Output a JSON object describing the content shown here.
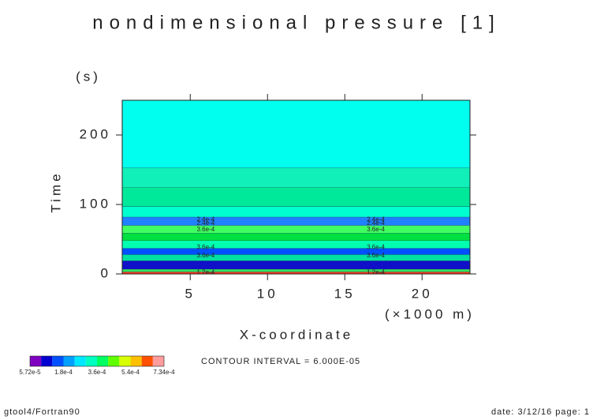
{
  "chart_data": {
    "type": "bands",
    "title": "nondimensional pressure [1]",
    "y_unit": "(s)",
    "ylabel": "Time",
    "xlabel": "X-coordinate",
    "x_unit": "(×1000 m)",
    "xlim": [
      0.6,
      23.1
    ],
    "ylim": [
      0,
      250
    ],
    "xticks": [
      5,
      10,
      15,
      20
    ],
    "yticks": [
      0,
      100,
      200
    ],
    "bands": [
      {
        "y0": 0,
        "y1": 3,
        "color": "#ff3a1e"
      },
      {
        "y0": 3,
        "y1": 7,
        "color": "#30e060"
      },
      {
        "y0": 7,
        "y1": 19,
        "color": "#1010c8"
      },
      {
        "y0": 19,
        "y1": 28,
        "color": "#00e0a0"
      },
      {
        "y0": 28,
        "y1": 37,
        "color": "#0050ff"
      },
      {
        "y0": 37,
        "y1": 48,
        "color": "#00ffb0"
      },
      {
        "y0": 48,
        "y1": 59,
        "color": "#00e040"
      },
      {
        "y0": 59,
        "y1": 70,
        "color": "#40ff60"
      },
      {
        "y0": 70,
        "y1": 82,
        "color": "#2080ff"
      },
      {
        "y0": 82,
        "y1": 97,
        "color": "#00ffd0"
      },
      {
        "y0": 97,
        "y1": 125,
        "color": "#00e89a"
      },
      {
        "y0": 125,
        "y1": 153,
        "color": "#10f0b8"
      },
      {
        "y0": 153,
        "y1": 250,
        "color": "#00ffee"
      }
    ],
    "contour_label_x": [
      6,
      17
    ],
    "contour_labels": [
      {
        "text": "2.4e-4",
        "y": 78
      },
      {
        "text": "2.4e-4",
        "y": 73
      },
      {
        "text": "3.6e-4",
        "y": 64
      },
      {
        "text": "3.6e-4",
        "y": 38
      },
      {
        "text": "3.6e-4",
        "y": 26
      },
      {
        "text": "1.2e-4",
        "y": 2
      }
    ],
    "colorbar_colors": [
      "#8000c0",
      "#0000d0",
      "#0050ff",
      "#00a0ff",
      "#00e8ff",
      "#00ffc0",
      "#00ff60",
      "#60ff00",
      "#d8ff00",
      "#ffc000",
      "#ff5000",
      "#ff9c9c"
    ],
    "colorbar_labels": [
      "5.72e-5",
      "1.8e-4",
      "3.6e-4",
      "5.4e-4",
      "7.34e-4"
    ],
    "contour_interval": "CONTOUR INTERVAL = 6.000E-05",
    "footer_left": "gtool4/Fortran90",
    "footer_right": "date: 3/12/16 page: 1"
  }
}
